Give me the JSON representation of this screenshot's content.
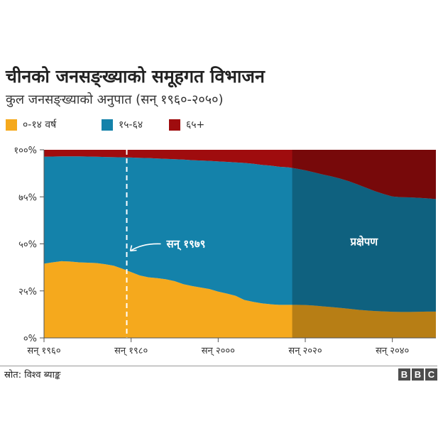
{
  "title": "चीनको जनसङ्ख्याको समूहगत विभाजन",
  "subtitle": "कुल जनसङ्ख्याको अनुपात (सन् १९६०-२०५०)",
  "source": "स्रोत: विश्व ब्याङ्क",
  "logo_letters": [
    "B",
    "B",
    "C"
  ],
  "colors": {
    "age_0_14": "#f5a91d",
    "age_15_64": "#1482aa",
    "age_65_plus": "#9f0c0e",
    "projection_shade": "#000000"
  },
  "chart_data": {
    "type": "area",
    "stacked": true,
    "x": [
      1960,
      1962,
      1964,
      1966,
      1968,
      1970,
      1972,
      1974,
      1976,
      1978,
      1980,
      1982,
      1984,
      1986,
      1988,
      1990,
      1992,
      1994,
      1996,
      1998,
      2000,
      2002,
      2004,
      2006,
      2008,
      2010,
      2012,
      2014,
      2016,
      2018,
      2020,
      2022,
      2024,
      2026,
      2028,
      2030,
      2032,
      2034,
      2036,
      2038,
      2040,
      2042,
      2044,
      2046,
      2048,
      2050
    ],
    "series": [
      {
        "name": "०-१४ वर्ष",
        "color_key": "age_0_14",
        "values": [
          39.5,
          40.2,
          40.8,
          40.6,
          40.2,
          40.0,
          39.8,
          39.2,
          38.4,
          36.8,
          35.0,
          33.2,
          32.2,
          31.8,
          31.2,
          30.2,
          28.6,
          27.6,
          26.8,
          26.0,
          24.6,
          23.6,
          22.4,
          20.2,
          19.2,
          18.4,
          17.9,
          17.6,
          17.6,
          17.6,
          17.5,
          17.2,
          16.8,
          16.4,
          16.0,
          15.5,
          15.0,
          14.6,
          14.3,
          14.1,
          13.9,
          13.8,
          13.8,
          13.9,
          14.0,
          14.0
        ]
      },
      {
        "name": "१५-६४",
        "color_key": "age_15_64",
        "values": [
          56.8,
          56.2,
          55.7,
          55.9,
          56.3,
          56.4,
          56.5,
          57.0,
          57.7,
          59.2,
          60.9,
          62.5,
          63.4,
          63.6,
          64.0,
          64.8,
          66.2,
          66.9,
          67.5,
          68.1,
          69.2,
          70.0,
          70.9,
          72.8,
          73.4,
          73.6,
          73.7,
          73.4,
          73.1,
          72.4,
          71.6,
          70.8,
          70.1,
          69.5,
          68.7,
          67.8,
          66.6,
          65.2,
          63.7,
          62.4,
          61.3,
          61.0,
          60.9,
          60.6,
          60.2,
          59.8
        ]
      },
      {
        "name": "६५+",
        "color_key": "age_65_plus",
        "values": [
          3.7,
          3.6,
          3.5,
          3.5,
          3.5,
          3.6,
          3.7,
          3.8,
          3.9,
          4.0,
          4.1,
          4.3,
          4.4,
          4.6,
          4.8,
          5.0,
          5.2,
          5.5,
          5.7,
          5.9,
          6.2,
          6.4,
          6.7,
          7.0,
          7.4,
          8.0,
          8.4,
          9.0,
          9.3,
          10.0,
          10.9,
          12.0,
          13.1,
          14.1,
          15.3,
          16.7,
          18.4,
          20.2,
          22.0,
          23.5,
          24.8,
          25.2,
          25.3,
          25.5,
          25.8,
          26.2
        ]
      }
    ],
    "xlim": [
      1960,
      2050
    ],
    "ylim": [
      0,
      100
    ],
    "x_ticks": [
      {
        "value": 1960,
        "label": "सन् १९६०"
      },
      {
        "value": 1980,
        "label": "सन् १९८०"
      },
      {
        "value": 2000,
        "label": "सन् २०००"
      },
      {
        "value": 2020,
        "label": "सन् २०२०"
      },
      {
        "value": 2040,
        "label": "सन् २०४०"
      }
    ],
    "y_ticks": [
      {
        "value": 0,
        "label": "०%"
      },
      {
        "value": 25,
        "label": "२५%"
      },
      {
        "value": 50,
        "label": "५०%"
      },
      {
        "value": 75,
        "label": "७५%"
      },
      {
        "value": 100,
        "label": "१००%"
      }
    ],
    "marker": {
      "x": 1979,
      "label": "सन् १९७९"
    },
    "projection": {
      "from": 2017,
      "label": "प्रक्षेपण"
    },
    "legend_position": "top-left",
    "grid": false
  }
}
